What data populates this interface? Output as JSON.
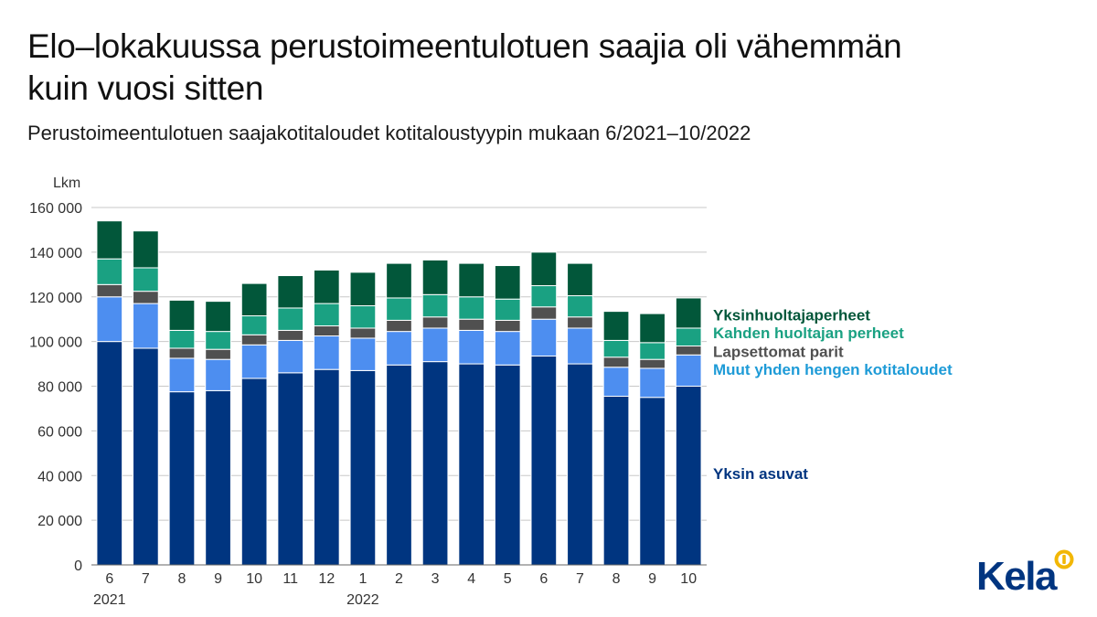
{
  "title": "Elo–lokakuussa perustoimeentulotuen saajia oli vähemmän kuin vuosi sitten",
  "subtitle": "Perustoimeentulotuen saajakotitaloudet kotitaloustyypin mukaan 6/2021–10/2022",
  "logo": {
    "text": "Kela",
    "mark": "kela-mark-icon"
  },
  "chart_data": {
    "type": "bar",
    "stacked": true,
    "ylabel": "Lkm",
    "ylim": [
      0,
      160000
    ],
    "yticks": [
      0,
      20000,
      40000,
      60000,
      80000,
      100000,
      120000,
      140000,
      160000
    ],
    "ytick_labels": [
      "0",
      "20 000",
      "40 000",
      "60 000",
      "80 000",
      "100 000",
      "120 000",
      "140 000",
      "160 000"
    ],
    "grid": true,
    "categories": [
      "6",
      "7",
      "8",
      "9",
      "10",
      "11",
      "12",
      "1",
      "2",
      "3",
      "4",
      "5",
      "6",
      "7",
      "8",
      "9",
      "10"
    ],
    "year_labels": [
      {
        "index": 0,
        "label": "2021"
      },
      {
        "index": 7,
        "label": "2022"
      }
    ],
    "series": [
      {
        "name": "Yksin asuvat",
        "color": "#003580",
        "values": [
          100000,
          97000,
          77500,
          78000,
          83500,
          86000,
          87500,
          87000,
          89500,
          91000,
          90000,
          89500,
          93500,
          90000,
          75500,
          75000,
          80000
        ]
      },
      {
        "name": "Muut yhden hengen kotitaloudet",
        "color": "#4d8ef0",
        "values": [
          20000,
          20000,
          15000,
          14000,
          15000,
          14500,
          15000,
          14500,
          15000,
          15000,
          15000,
          15000,
          16500,
          16000,
          13000,
          13000,
          14000
        ]
      },
      {
        "name": "Lapsettomat parit",
        "color": "#505050",
        "values": [
          5500,
          5500,
          4500,
          4500,
          4500,
          4500,
          4500,
          4500,
          5000,
          5000,
          5000,
          5000,
          5500,
          5000,
          4500,
          4000,
          4000
        ]
      },
      {
        "name": "Kahden huoltajan perheet",
        "color": "#1aa182",
        "values": [
          11500,
          10500,
          8000,
          8000,
          8500,
          10000,
          10000,
          10000,
          10000,
          10000,
          10000,
          9500,
          9500,
          9500,
          7500,
          7500,
          8000
        ]
      },
      {
        "name": "Yksinhuoltajaperheet",
        "color": "#02573a",
        "values": [
          17000,
          16500,
          13500,
          13500,
          14500,
          14500,
          15000,
          15000,
          15500,
          15500,
          15000,
          15000,
          15000,
          14500,
          13000,
          13000,
          13500
        ]
      }
    ],
    "legend": [
      {
        "name": "Yksinhuoltajaperheet",
        "color": "#02573a",
        "anchor_value": 112000
      },
      {
        "name": "Kahden huoltajan perheet",
        "color": "#1aa182",
        "anchor_value": 104000
      },
      {
        "name": "Lapsettomat parit",
        "color": "#505050",
        "anchor_value": 95500
      },
      {
        "name": "Muut yhden hengen kotitaloudet",
        "color": "#1e9bd7",
        "anchor_value": 87500
      },
      {
        "name": "Yksin asuvat",
        "color": "#003580",
        "anchor_value": 41000
      }
    ],
    "legend_position": "right"
  }
}
